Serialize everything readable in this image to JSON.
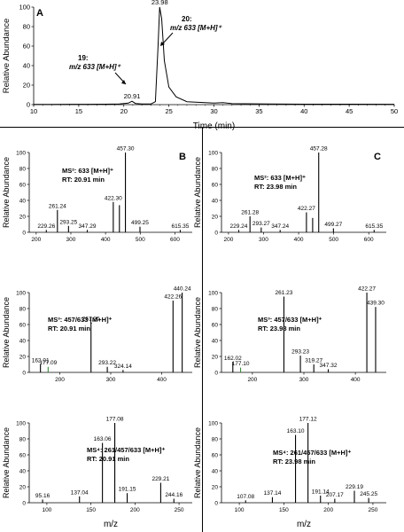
{
  "figure": {
    "panel_labels": [
      "A",
      "B",
      "C"
    ],
    "common_ylabel": "Relative Abundance",
    "common_xlabel": "m/z"
  },
  "chart_data": [
    {
      "id": "A",
      "type": "line",
      "panel_label": "A",
      "xlabel": "Time (min)",
      "ylabel": "Relative Abundance",
      "xlim": [
        10,
        50
      ],
      "ylim": [
        0,
        100
      ],
      "xticks": [
        10,
        15,
        20,
        25,
        30,
        35,
        40,
        45,
        50
      ],
      "yticks": [
        0,
        20,
        40,
        60,
        80,
        100
      ],
      "peak_labels": [
        {
          "x": 20.91,
          "label": "20.91"
        },
        {
          "x": 23.98,
          "label": "23.98"
        }
      ],
      "points": [
        [
          10,
          0.3
        ],
        [
          12,
          0.3
        ],
        [
          14,
          0.4
        ],
        [
          16,
          0.4
        ],
        [
          18,
          0.5
        ],
        [
          19.5,
          0.6
        ],
        [
          20.5,
          1.5
        ],
        [
          20.91,
          3.5
        ],
        [
          21.3,
          1.2
        ],
        [
          22,
          0.6
        ],
        [
          23,
          0.6
        ],
        [
          23.5,
          3
        ],
        [
          23.8,
          60
        ],
        [
          23.98,
          100
        ],
        [
          24.2,
          88
        ],
        [
          24.5,
          45
        ],
        [
          25,
          18
        ],
        [
          25.8,
          8
        ],
        [
          27,
          3
        ],
        [
          30,
          1.5
        ],
        [
          31,
          2
        ],
        [
          32,
          1
        ],
        [
          36,
          0.7
        ],
        [
          40,
          0.5
        ],
        [
          45,
          0.5
        ],
        [
          50,
          0.4
        ]
      ],
      "annotations": [
        {
          "name": "19:",
          "text": "m/z 633 [M+H]⁺"
        },
        {
          "name": "20:",
          "text": "m/z 633 [M+H]⁺"
        }
      ]
    },
    {
      "id": "B1",
      "type": "bar",
      "panel_label": "B",
      "ylabel": "Relative Abundance",
      "xlim": [
        180,
        650
      ],
      "ylim": [
        0,
        100
      ],
      "xticks": [
        200,
        300,
        400,
        500,
        600
      ],
      "yticks": [
        0,
        20,
        40,
        60,
        80,
        100
      ],
      "title_lines": [
        "MS²: 633 [M+H]⁺",
        "RT: 20.91 min"
      ],
      "peaks": [
        [
          229.26,
          3
        ],
        [
          261.24,
          28
        ],
        [
          293.25,
          8
        ],
        [
          347.29,
          3
        ],
        [
          422.3,
          38
        ],
        [
          440,
          34
        ],
        [
          457.3,
          100
        ],
        [
          499.25,
          7
        ],
        [
          615.35,
          3
        ]
      ],
      "labels": [
        [
          229.26,
          "229.26"
        ],
        [
          261.24,
          "261.24"
        ],
        [
          293.25,
          "293.25"
        ],
        [
          347.29,
          "347.29"
        ],
        [
          422.3,
          "422.30"
        ],
        [
          457.3,
          "457.30"
        ],
        [
          499.25,
          "499.25"
        ],
        [
          615.35,
          "615.35"
        ]
      ]
    },
    {
      "id": "C1",
      "type": "bar",
      "panel_label": "C",
      "ylabel": "Relative Abundance",
      "xlim": [
        180,
        650
      ],
      "ylim": [
        0,
        100
      ],
      "xticks": [
        200,
        300,
        400,
        500,
        600
      ],
      "yticks": [
        0,
        20,
        40,
        60,
        80,
        100
      ],
      "title_lines": [
        "MS²: 633 [M+H]⁺",
        "RT: 23.98 min"
      ],
      "peaks": [
        [
          229.24,
          3
        ],
        [
          261.28,
          20
        ],
        [
          293.27,
          6
        ],
        [
          347.24,
          3
        ],
        [
          422.27,
          25
        ],
        [
          440,
          18
        ],
        [
          457.28,
          100
        ],
        [
          499.27,
          5
        ],
        [
          615.35,
          3
        ]
      ],
      "labels": [
        [
          229.24,
          "229.24"
        ],
        [
          261.28,
          "261.28"
        ],
        [
          293.27,
          "293.27"
        ],
        [
          347.24,
          "347.24"
        ],
        [
          422.27,
          "422.27"
        ],
        [
          457.28,
          "457.28"
        ],
        [
          499.27,
          "499.27"
        ],
        [
          615.35,
          "615.35"
        ]
      ]
    },
    {
      "id": "B2",
      "type": "bar",
      "ylabel": "Relative Abundance",
      "xlim": [
        140,
        460
      ],
      "ylim": [
        0,
        100
      ],
      "xticks": [
        200,
        300,
        400
      ],
      "yticks": [
        0,
        20,
        40,
        60,
        80,
        100
      ],
      "title_lines": [
        "MS³: 457/633 [M+H]⁺",
        "RT: 20.91 min"
      ],
      "peaks": [
        [
          162.01,
          10
        ],
        [
          177.09,
          7
        ],
        [
          261.25,
          62
        ],
        [
          293.22,
          7
        ],
        [
          324.14,
          3
        ],
        [
          422.26,
          90
        ],
        [
          440.24,
          100
        ]
      ],
      "labels": [
        [
          162.01,
          "162.01"
        ],
        [
          177.09,
          "177.09"
        ],
        [
          261.25,
          "261.25"
        ],
        [
          293.22,
          "293.22"
        ],
        [
          324.14,
          "324.14"
        ],
        [
          422.26,
          "422.26"
        ],
        [
          440.24,
          "440.24"
        ]
      ]
    },
    {
      "id": "C2",
      "type": "bar",
      "ylabel": "Relative Abundance",
      "xlim": [
        140,
        460
      ],
      "ylim": [
        0,
        100
      ],
      "xticks": [
        200,
        300,
        400
      ],
      "yticks": [
        0,
        20,
        40,
        60,
        80,
        100
      ],
      "title_lines": [
        "MS³: 457/633 [M+H]⁺",
        "RT: 23.98 min"
      ],
      "peaks": [
        [
          162.02,
          13
        ],
        [
          177.1,
          6
        ],
        [
          261.23,
          95
        ],
        [
          293.23,
          21
        ],
        [
          319.27,
          10
        ],
        [
          347.32,
          4
        ],
        [
          422.27,
          100
        ],
        [
          439.3,
          82
        ]
      ],
      "labels": [
        [
          162.02,
          "162.02"
        ],
        [
          177.1,
          "177.10"
        ],
        [
          261.23,
          "261.23"
        ],
        [
          293.23,
          "293.23"
        ],
        [
          319.27,
          "319.27"
        ],
        [
          347.32,
          "347.32"
        ],
        [
          422.27,
          "422.27"
        ],
        [
          439.3,
          "439.30"
        ]
      ]
    },
    {
      "id": "B3",
      "type": "bar",
      "ylabel": "Relative Abundance",
      "xlabel": "m/z",
      "xlim": [
        80,
        265
      ],
      "ylim": [
        0,
        100
      ],
      "xticks": [
        100,
        150,
        200,
        250
      ],
      "yticks": [
        0,
        20,
        40,
        60,
        80,
        100
      ],
      "title_lines": [
        "MS⁴: 261/457/633 [M+H]⁺",
        "RT: 20.91 min"
      ],
      "peaks": [
        [
          95.16,
          4
        ],
        [
          137.04,
          8
        ],
        [
          163.06,
          75
        ],
        [
          177.08,
          100
        ],
        [
          191.15,
          12
        ],
        [
          229.21,
          25
        ],
        [
          244.16,
          5
        ]
      ],
      "labels": [
        [
          95.16,
          "95.16"
        ],
        [
          137.04,
          "137.04"
        ],
        [
          163.06,
          "163.06"
        ],
        [
          177.08,
          "177.08"
        ],
        [
          191.15,
          "191.15"
        ],
        [
          229.21,
          "229.21"
        ],
        [
          244.16,
          "244.16"
        ]
      ]
    },
    {
      "id": "C3",
      "type": "bar",
      "ylabel": "Relative Abundance",
      "xlabel": "m/z",
      "xlim": [
        80,
        265
      ],
      "ylim": [
        0,
        100
      ],
      "xticks": [
        100,
        150,
        200,
        250
      ],
      "yticks": [
        0,
        20,
        40,
        60,
        80,
        100
      ],
      "title_lines": [
        "MS⁴: 261/457/633 [M+H]⁺",
        "RT: 23.98 min"
      ],
      "peaks": [
        [
          107.08,
          3
        ],
        [
          137.14,
          7
        ],
        [
          163.1,
          85
        ],
        [
          177.12,
          100
        ],
        [
          191.14,
          9
        ],
        [
          207.17,
          5
        ],
        [
          229.19,
          15
        ],
        [
          245.25,
          6
        ]
      ],
      "labels": [
        [
          107.08,
          "107.08"
        ],
        [
          137.14,
          "137.14"
        ],
        [
          163.1,
          "163.10"
        ],
        [
          177.12,
          "177.12"
        ],
        [
          191.14,
          "191.14"
        ],
        [
          207.17,
          "207.17"
        ],
        [
          229.19,
          "229.19"
        ],
        [
          245.25,
          "245.25"
        ]
      ]
    }
  ]
}
